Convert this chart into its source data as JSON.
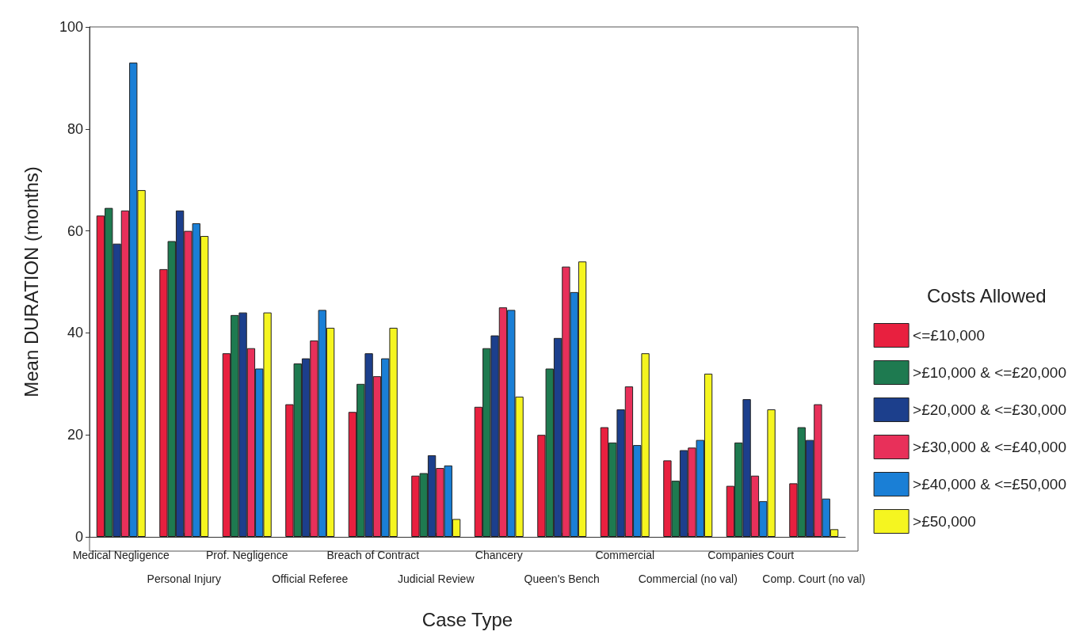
{
  "chart_data": {
    "type": "bar",
    "xlabel": "Case Type",
    "ylabel": "Mean DURATION (months)",
    "legend_title": "Costs Allowed",
    "categories": [
      "Medical Negligence",
      "Personal Injury",
      "Prof. Negligence",
      "Official Referee",
      "Breach of Contract",
      "Judicial Review",
      "Chancery",
      "Queen's Bench",
      "Commercial",
      "Commercial (no val)",
      "Companies Court",
      "Comp. Court (no val)"
    ],
    "series": [
      {
        "name": "<=£10,000",
        "color": "#e8203f",
        "values": [
          63,
          52.5,
          36,
          26,
          24.5,
          12,
          25.5,
          20,
          21.5,
          15,
          10,
          10.5
        ]
      },
      {
        "name": ">£10,000 & <=£20,000",
        "color": "#1e7a50",
        "values": [
          64.5,
          58,
          43.5,
          34,
          30,
          12.5,
          37,
          33,
          18.5,
          11,
          18.5,
          21.5
        ]
      },
      {
        "name": ">£20,000 & <=£30,000",
        "color": "#1c3f8c",
        "values": [
          57.5,
          64,
          44,
          35,
          36,
          16,
          39.5,
          39,
          25,
          17,
          27,
          19
        ]
      },
      {
        "name": ">£30,000 & <=£40,000",
        "color": "#e8305a",
        "values": [
          64,
          60,
          37,
          38.5,
          31.5,
          13.5,
          45,
          53,
          29.5,
          17.5,
          12,
          26
        ]
      },
      {
        "name": ">£40,000 & <=£50,000",
        "color": "#1a7fd6",
        "values": [
          93,
          61.5,
          33,
          44.5,
          35,
          14,
          44.5,
          48,
          18,
          19,
          7,
          7.5
        ]
      },
      {
        "name": ">£50,000",
        "color": "#f5f520",
        "values": [
          68,
          59,
          44,
          41,
          41,
          3.5,
          27.5,
          54,
          36,
          32,
          25,
          1.5
        ]
      }
    ],
    "ylim": [
      0,
      100
    ],
    "yticks": [
      0,
      20,
      40,
      60,
      80,
      100
    ],
    "grid": false,
    "legend": "right"
  }
}
